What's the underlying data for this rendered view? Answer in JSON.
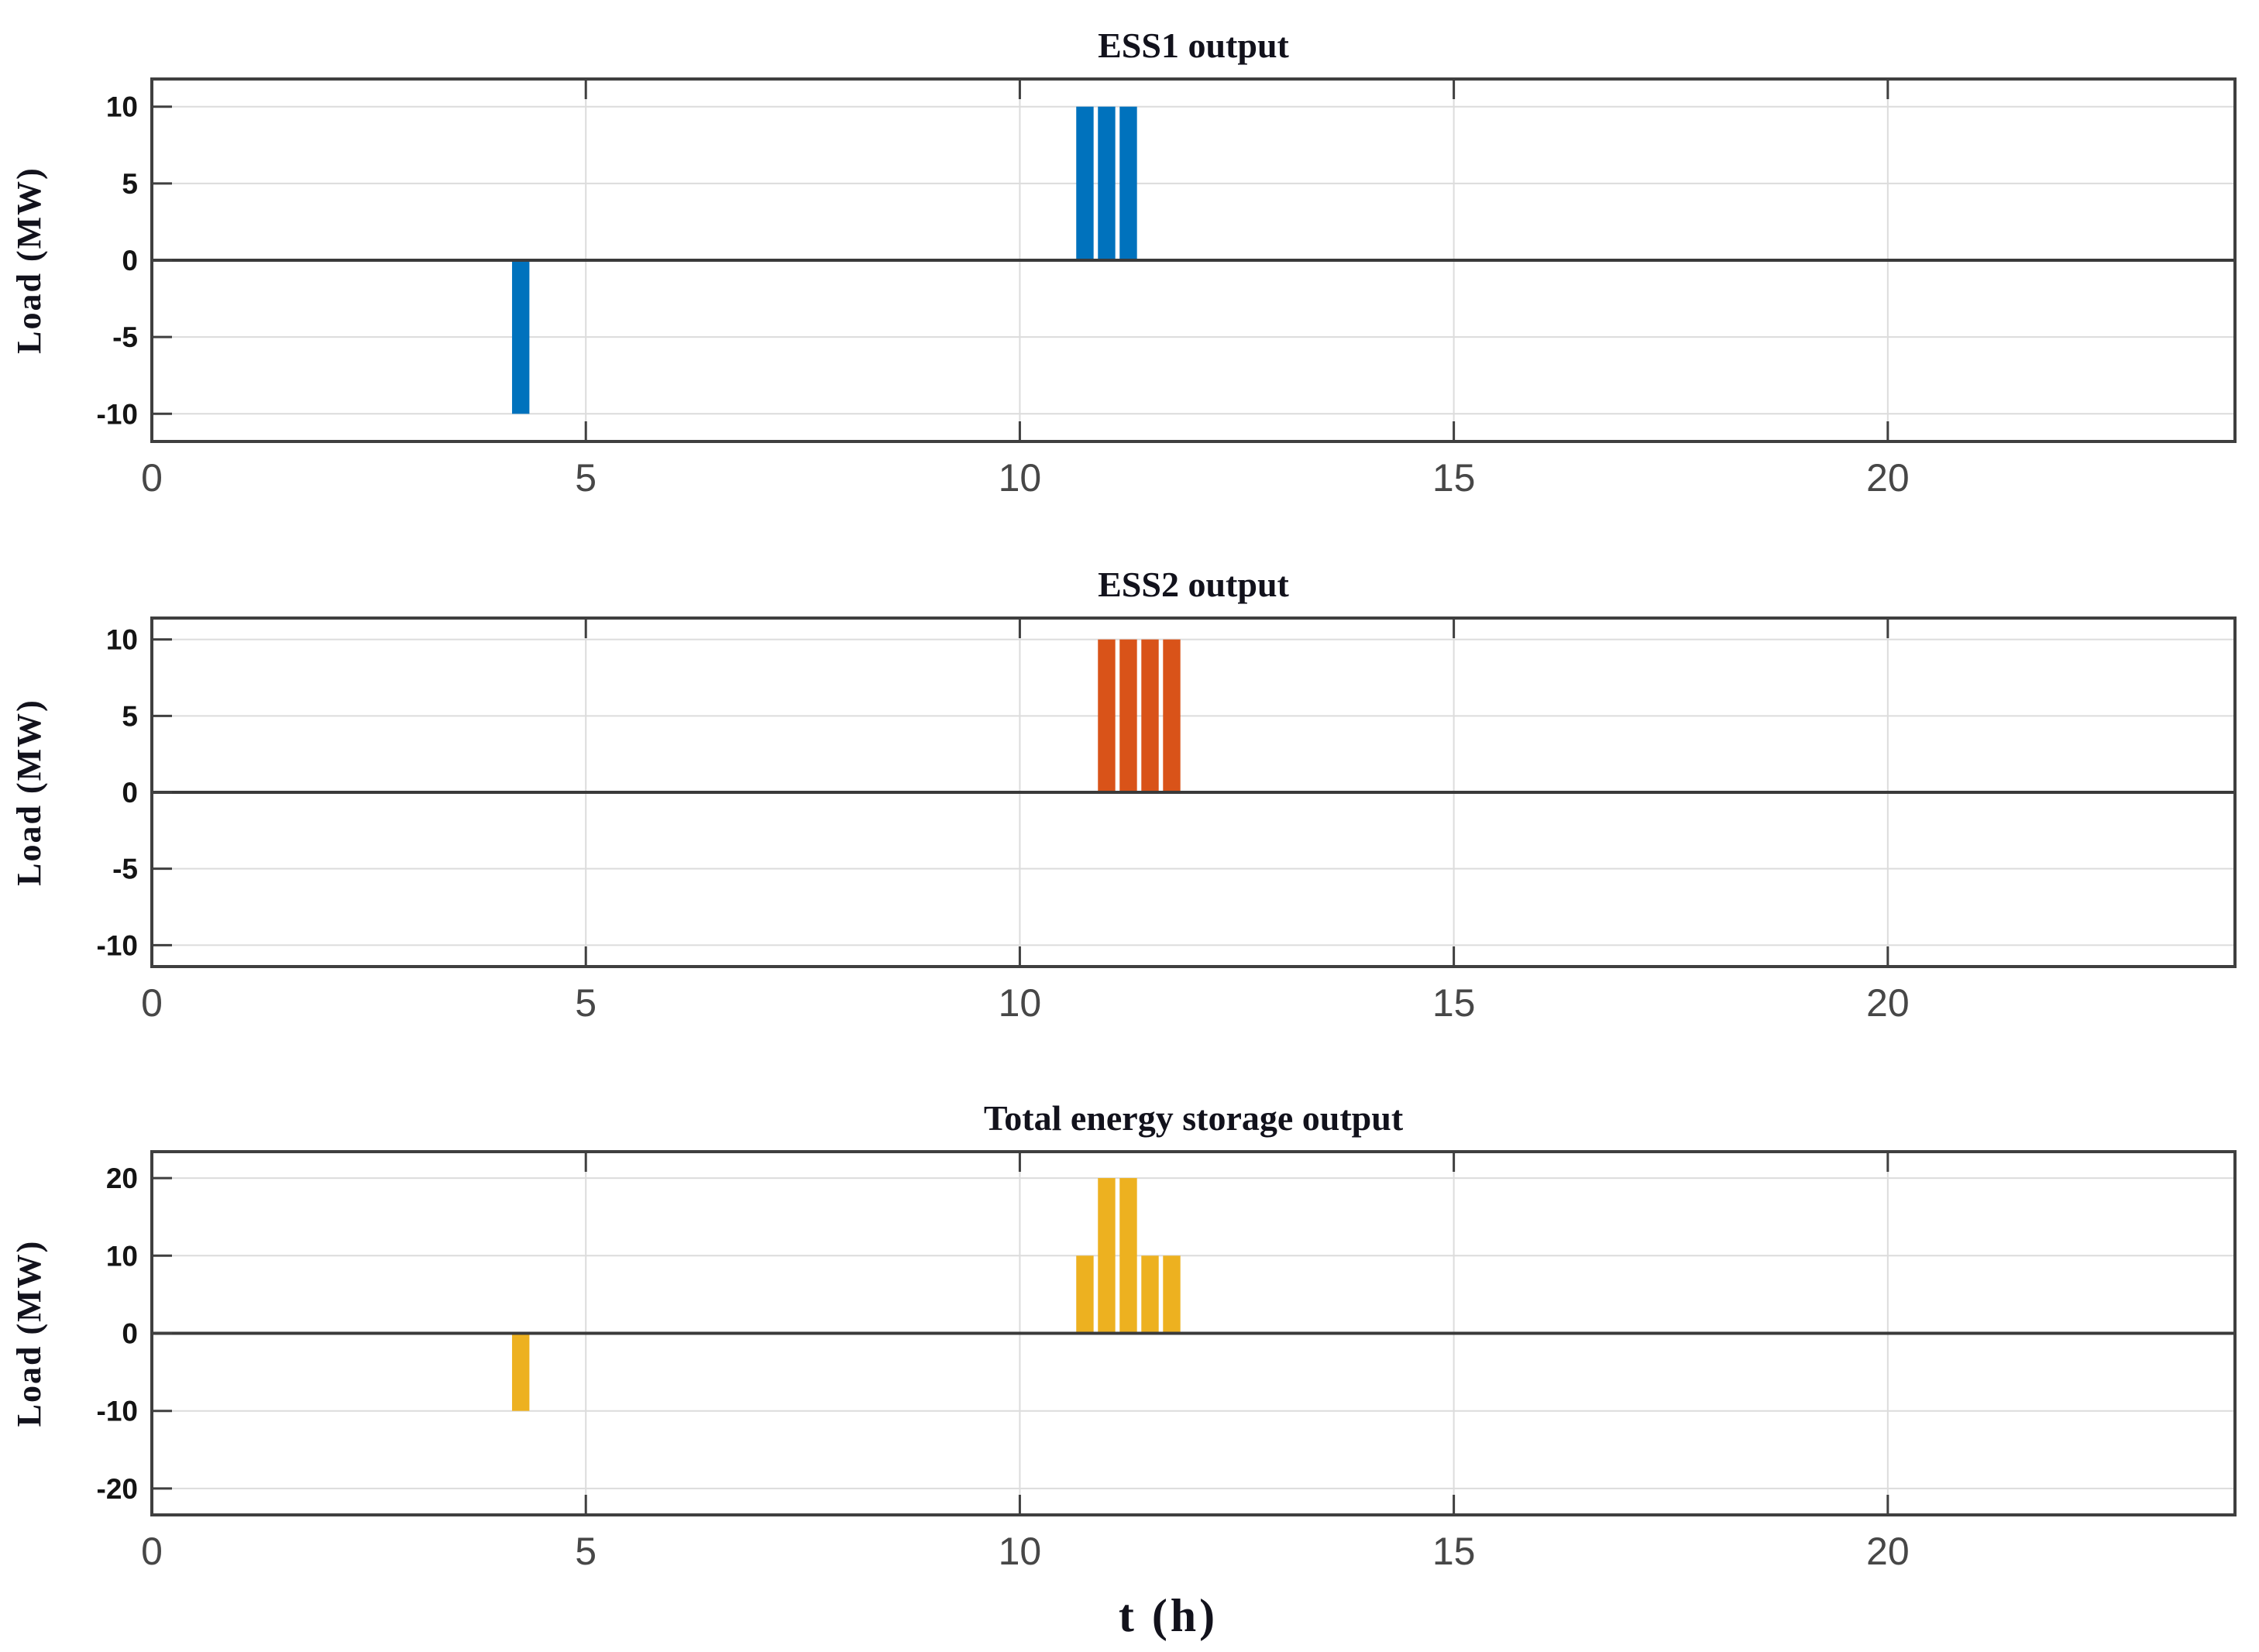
{
  "figure": {
    "xlabel": "t (h)",
    "background": "#ffffff",
    "frame_color": "#3f3f3f",
    "grid_color": "#dcdcdc",
    "zero_line_color": "#3a3a3a"
  },
  "chart_data": [
    {
      "type": "bar",
      "title": "ESS1 output",
      "ylabel": "Load (MW)",
      "color": "#0072BD",
      "x": [
        4.25,
        10.75,
        11,
        11.25
      ],
      "values": [
        -10,
        10,
        10,
        10
      ],
      "bar_width": 0.2,
      "xlim": [
        0,
        24
      ],
      "ylim": [
        -11.8,
        11.8
      ],
      "xticks": [
        0,
        5,
        10,
        15,
        20
      ],
      "yticks": [
        10,
        5,
        0,
        -5,
        -10
      ],
      "grid": true,
      "legend": null
    },
    {
      "type": "bar",
      "title": "ESS2 output",
      "ylabel": "Load (MW)",
      "color": "#D95319",
      "x": [
        11,
        11.25,
        11.5,
        11.75
      ],
      "values": [
        10,
        10,
        10,
        10
      ],
      "bar_width": 0.2,
      "xlim": [
        0,
        24
      ],
      "ylim": [
        -11.4,
        11.4
      ],
      "xticks": [
        0,
        5,
        10,
        15,
        20
      ],
      "yticks": [
        10,
        5,
        0,
        -5,
        -10
      ],
      "grid": true,
      "legend": null
    },
    {
      "type": "bar",
      "title": "Total energy storage output",
      "ylabel": "Load (MW)",
      "color": "#EDB120",
      "x": [
        4.25,
        10.75,
        11,
        11.25,
        11.5,
        11.75
      ],
      "values": [
        -10,
        10,
        20,
        20,
        10,
        10
      ],
      "bar_width": 0.2,
      "xlim": [
        0,
        24
      ],
      "ylim": [
        -23.4,
        23.4
      ],
      "xticks": [
        0,
        5,
        10,
        15,
        20
      ],
      "yticks": [
        20,
        10,
        0,
        -10,
        -20
      ],
      "grid": true,
      "legend": null
    }
  ]
}
